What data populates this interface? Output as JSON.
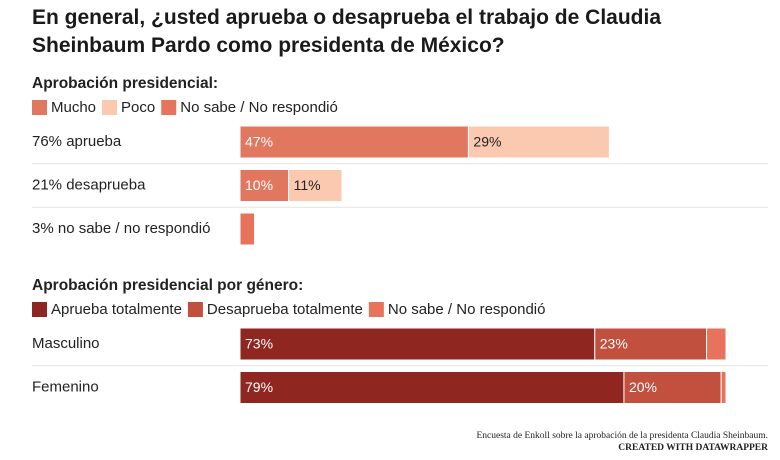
{
  "title": "En general, ¿usted aprueba o desaprueba el trabajo de Claudia Sheinbaum Pardo como presidenta de México?",
  "chart_data": [
    {
      "type": "bar",
      "stacked": true,
      "orientation": "horizontal",
      "title": "Aprobación presidencial:",
      "categories": [
        "76% aprueba",
        "21% desaprueba",
        "3% no sabe / no respondió"
      ],
      "xlim": [
        0,
        100
      ],
      "series": [
        {
          "name": "Mucho",
          "color": "#e27760",
          "values": [
            47,
            10,
            null
          ],
          "value_labels": [
            "47%",
            "10%",
            null
          ]
        },
        {
          "name": "Poco",
          "color": "#fbc9b0",
          "values": [
            29,
            11,
            null
          ],
          "value_labels": [
            "29%",
            "11%",
            null
          ]
        },
        {
          "name": "No sabe / No respondió",
          "color": "#e8735c",
          "values": [
            null,
            null,
            3
          ],
          "value_labels": [
            null,
            null,
            null
          ]
        }
      ]
    },
    {
      "type": "bar",
      "stacked": true,
      "orientation": "horizontal",
      "title": "Aprobación presidencial por género:",
      "categories": [
        "Masculino",
        "Femenino"
      ],
      "xlim": [
        0,
        100
      ],
      "series": [
        {
          "name": "Aprueba totalmente",
          "color": "#8f2620",
          "values": [
            73,
            79
          ],
          "value_labels": [
            "73%",
            "79%"
          ]
        },
        {
          "name": "Desaprueba totalmente",
          "color": "#c2503f",
          "values": [
            23,
            20
          ],
          "value_labels": [
            "23%",
            "20%"
          ]
        },
        {
          "name": "No sabe / No respondió",
          "color": "#e8735c",
          "values": [
            4,
            1
          ],
          "value_labels": [
            null,
            null
          ]
        }
      ]
    }
  ],
  "footer": {
    "source": "Encuesta de Enkoll sobre la aprobación de la presidenta Claudia Sheinbaum.",
    "credit": "CREATED WITH DATAWRAPPER"
  }
}
